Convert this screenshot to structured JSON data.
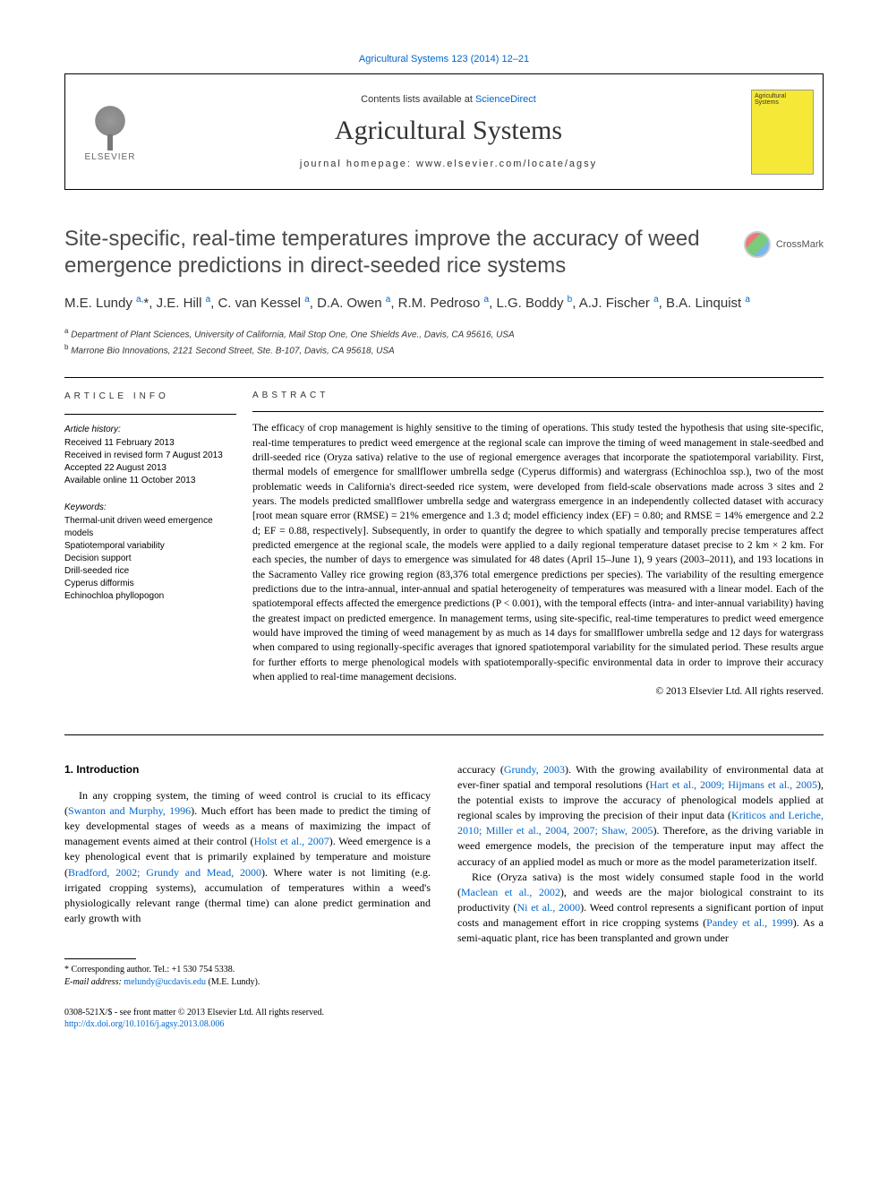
{
  "top_link": "Agricultural Systems 123 (2014) 12–21",
  "header": {
    "contents_prefix": "Contents lists available at ",
    "contents_link": "ScienceDirect",
    "journal_title": "Agricultural Systems",
    "homepage_label": "journal homepage: www.elsevier.com/locate/agsy",
    "elsevier_label": "ELSEVIER",
    "cover_text": "Agricultural Systems"
  },
  "crossmark": "CrossMark",
  "title": "Site-specific, real-time temperatures improve the accuracy of weed emergence predictions in direct-seeded rice systems",
  "authors_html": "M.E. Lundy <sup>a,</sup>*, J.E. Hill <sup>a</sup>, C. van Kessel <sup>a</sup>, D.A. Owen <sup>a</sup>, R.M. Pedroso <sup>a</sup>, L.G. Boddy <sup>b</sup>, A.J. Fischer <sup>a</sup>, B.A. Linquist <sup>a</sup>",
  "affiliations": [
    "a Department of Plant Sciences, University of California, Mail Stop One, One Shields Ave., Davis, CA 95616, USA",
    "b Marrone Bio Innovations, 2121 Second Street, Ste. B-107, Davis, CA 95618, USA"
  ],
  "article_info": {
    "heading": "article info",
    "history_heading": "Article history:",
    "history": [
      "Received 11 February 2013",
      "Received in revised form 7 August 2013",
      "Accepted 22 August 2013",
      "Available online 11 October 2013"
    ],
    "keywords_heading": "Keywords:",
    "keywords": [
      "Thermal-unit driven weed emergence models",
      "Spatiotemporal variability",
      "Decision support",
      "Drill-seeded rice",
      "Cyperus difformis",
      "Echinochloa phyllopogon"
    ]
  },
  "abstract": {
    "heading": "abstract",
    "text": "The efficacy of crop management is highly sensitive to the timing of operations. This study tested the hypothesis that using site-specific, real-time temperatures to predict weed emergence at the regional scale can improve the timing of weed management in stale-seedbed and drill-seeded rice (Oryza sativa) relative to the use of regional emergence averages that incorporate the spatiotemporal variability. First, thermal models of emergence for smallflower umbrella sedge (Cyperus difformis) and watergrass (Echinochloa ssp.), two of the most problematic weeds in California's direct-seeded rice system, were developed from field-scale observations made across 3 sites and 2 years. The models predicted smallflower umbrella sedge and watergrass emergence in an independently collected dataset with accuracy [root mean square error (RMSE) = 21% emergence and 1.3 d; model efficiency index (EF) = 0.80; and RMSE = 14% emergence and 2.2 d; EF = 0.88, respectively]. Subsequently, in order to quantify the degree to which spatially and temporally precise temperatures affect predicted emergence at the regional scale, the models were applied to a daily regional temperature dataset precise to 2 km × 2 km. For each species, the number of days to emergence was simulated for 48 dates (April 15–June 1), 9 years (2003–2011), and 193 locations in the Sacramento Valley rice growing region (83,376 total emergence predictions per species). The variability of the resulting emergence predictions due to the intra-annual, inter-annual and spatial heterogeneity of temperatures was measured with a linear model. Each of the spatiotemporal effects affected the emergence predictions (P < 0.001), with the temporal effects (intra- and inter-annual variability) having the greatest impact on predicted emergence. In management terms, using site-specific, real-time temperatures to predict weed emergence would have improved the timing of weed management by as much as 14 days for smallflower umbrella sedge and 12 days for watergrass when compared to using regionally-specific averages that ignored spatiotemporal variability for the simulated period. These results argue for further efforts to merge phenological models with spatiotemporally-specific environmental data in order to improve their accuracy when applied to real-time management decisions.",
    "copyright": "© 2013 Elsevier Ltd. All rights reserved."
  },
  "section_heading": "1. Introduction",
  "col1": "In any cropping system, the timing of weed control is crucial to its efficacy (Swanton and Murphy, 1996). Much effort has been made to predict the timing of key developmental stages of weeds as a means of maximizing the impact of management events aimed at their control (Holst et al., 2007). Weed emergence is a key phenological event that is primarily explained by temperature and moisture (Bradford, 2002; Grundy and Mead, 2000). Where water is not limiting (e.g. irrigated cropping systems), accumulation of temperatures within a weed's physiologically relevant range (thermal time) can alone predict germination and early growth with",
  "col2": "accuracy (Grundy, 2003). With the growing availability of environmental data at ever-finer spatial and temporal resolutions (Hart et al., 2009; Hijmans et al., 2005), the potential exists to improve the accuracy of phenological models applied at regional scales by improving the precision of their input data (Kriticos and Leriche, 2010; Miller et al., 2004, 2007; Shaw, 2005). Therefore, as the driving variable in weed emergence models, the precision of the temperature input may affect the accuracy of an applied model as much or more as the model parameterization itself.",
  "col2b": "Rice (Oryza sativa) is the most widely consumed staple food in the world (Maclean et al., 2002), and weeds are the major biological constraint to its productivity (Ni et al., 2000). Weed control represents a significant portion of input costs and management effort in rice cropping systems (Pandey et al., 1999). As a semi-aquatic plant, rice has been transplanted and grown under",
  "footnotes": {
    "corr": "* Corresponding author. Tel.: +1 530 754 5338.",
    "email_label": "E-mail address:",
    "email": "melundy@ucdavis.edu",
    "email_paren": "(M.E. Lundy)."
  },
  "bottom": {
    "line1": "0308-521X/$ - see front matter © 2013 Elsevier Ltd. All rights reserved.",
    "doi": "http://dx.doi.org/10.1016/j.agsy.2013.08.006"
  },
  "refs": {
    "swanton": "Swanton and Murphy, 1996",
    "holst": "Holst et al., 2007",
    "bradford": "Bradford, 2002; Grundy and Mead, 2000",
    "grundy": "Grundy, 2003",
    "hart": "Hart et al., 2009; Hijmans et al., 2005",
    "kriticos": "Kriticos and Leriche, 2010; Miller et al., 2004, 2007; Shaw, 2005",
    "maclean": "Maclean et al., 2002",
    "ni": "Ni et al., 2000",
    "pandey": "Pandey et al., 1999"
  }
}
